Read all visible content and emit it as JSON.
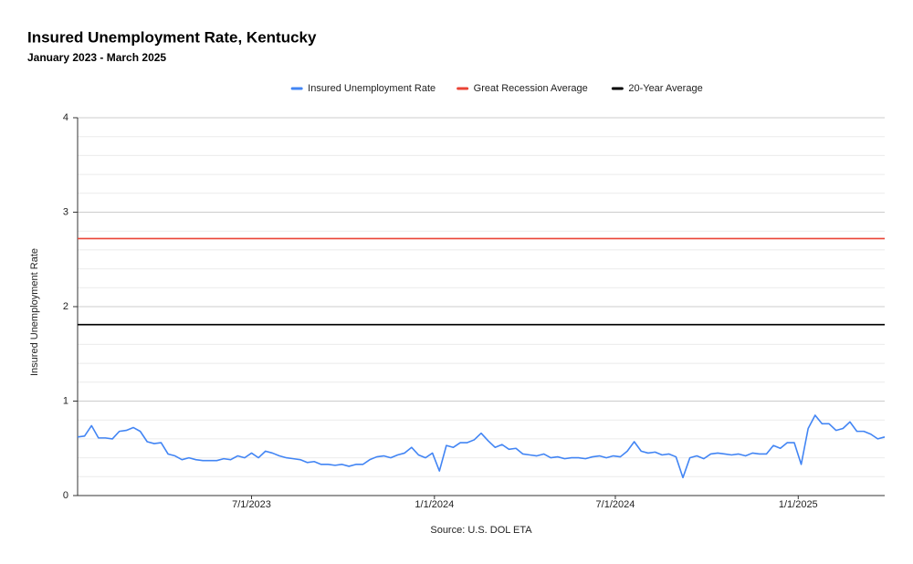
{
  "chart_data": {
    "type": "line",
    "title": "Insured Unemployment Rate, Kentucky",
    "subtitle": "January 2023 - March 2025",
    "y_label": "Insured Unemployment Rate",
    "source": "Source: U.S. DOL ETA",
    "x": [
      "1/7/2023",
      "1/14/2023",
      "1/21/2023",
      "1/28/2023",
      "2/4/2023",
      "2/11/2023",
      "2/18/2023",
      "2/25/2023",
      "3/4/2023",
      "3/11/2023",
      "3/18/2023",
      "3/25/2023",
      "4/1/2023",
      "4/8/2023",
      "4/15/2023",
      "4/22/2023",
      "4/29/2023",
      "5/6/2023",
      "5/13/2023",
      "5/20/2023",
      "5/27/2023",
      "6/3/2023",
      "6/10/2023",
      "6/17/2023",
      "6/24/2023",
      "7/1/2023",
      "7/8/2023",
      "7/15/2023",
      "7/22/2023",
      "7/29/2023",
      "8/5/2023",
      "8/12/2023",
      "8/19/2023",
      "8/26/2023",
      "9/2/2023",
      "9/9/2023",
      "9/16/2023",
      "9/23/2023",
      "9/30/2023",
      "10/7/2023",
      "10/14/2023",
      "10/21/2023",
      "10/28/2023",
      "11/4/2023",
      "11/11/2023",
      "11/18/2023",
      "11/25/2023",
      "12/2/2023",
      "12/9/2023",
      "12/16/2023",
      "12/23/2023",
      "12/30/2023",
      "1/6/2024",
      "1/13/2024",
      "1/20/2024",
      "1/27/2024",
      "2/3/2024",
      "2/10/2024",
      "2/17/2024",
      "2/24/2024",
      "3/2/2024",
      "3/9/2024",
      "3/16/2024",
      "3/23/2024",
      "3/30/2024",
      "4/6/2024",
      "4/13/2024",
      "4/20/2024",
      "4/27/2024",
      "5/4/2024",
      "5/11/2024",
      "5/18/2024",
      "5/25/2024",
      "6/1/2024",
      "6/8/2024",
      "6/15/2024",
      "6/22/2024",
      "6/29/2024",
      "7/6/2024",
      "7/13/2024",
      "7/20/2024",
      "7/27/2024",
      "8/3/2024",
      "8/10/2024",
      "8/17/2024",
      "8/24/2024",
      "8/31/2024",
      "9/7/2024",
      "9/14/2024",
      "9/21/2024",
      "9/28/2024",
      "10/5/2024",
      "10/12/2024",
      "10/19/2024",
      "10/26/2024",
      "11/2/2024",
      "11/9/2024",
      "11/16/2024",
      "11/23/2024",
      "11/30/2024",
      "12/7/2024",
      "12/14/2024",
      "12/21/2024",
      "12/28/2024",
      "1/4/2025",
      "1/11/2025",
      "1/18/2025",
      "1/25/2025",
      "2/1/2025",
      "2/8/2025",
      "2/15/2025",
      "2/22/2025",
      "3/1/2025",
      "3/8/2025",
      "3/15/2025",
      "3/22/2025",
      "3/29/2025"
    ],
    "series": [
      {
        "name": "Insured Unemployment Rate",
        "color": "#4285f4",
        "values": [
          0.62,
          0.63,
          0.74,
          0.61,
          0.61,
          0.6,
          0.68,
          0.69,
          0.72,
          0.68,
          0.57,
          0.55,
          0.56,
          0.44,
          0.42,
          0.38,
          0.4,
          0.38,
          0.37,
          0.37,
          0.37,
          0.39,
          0.38,
          0.42,
          0.4,
          0.45,
          0.4,
          0.47,
          0.45,
          0.42,
          0.4,
          0.39,
          0.38,
          0.35,
          0.36,
          0.33,
          0.33,
          0.32,
          0.33,
          0.31,
          0.33,
          0.33,
          0.38,
          0.41,
          0.42,
          0.4,
          0.43,
          0.45,
          0.51,
          0.43,
          0.4,
          0.45,
          0.26,
          0.53,
          0.51,
          0.56,
          0.56,
          0.59,
          0.66,
          0.58,
          0.51,
          0.54,
          0.49,
          0.5,
          0.44,
          0.43,
          0.42,
          0.44,
          0.4,
          0.41,
          0.39,
          0.4,
          0.4,
          0.39,
          0.41,
          0.42,
          0.4,
          0.42,
          0.41,
          0.47,
          0.57,
          0.47,
          0.45,
          0.46,
          0.43,
          0.44,
          0.41,
          0.19,
          0.4,
          0.42,
          0.39,
          0.44,
          0.45,
          0.44,
          0.43,
          0.44,
          0.42,
          0.45,
          0.44,
          0.44,
          0.53,
          0.5,
          0.56,
          0.56,
          0.33,
          0.71,
          0.85,
          0.76,
          0.76,
          0.69,
          0.71,
          0.78,
          0.68,
          0.68,
          0.65,
          0.6,
          0.62
        ]
      }
    ],
    "reference_lines": [
      {
        "name": "Great Recession Average",
        "color": "#ea4335",
        "value": 2.72
      },
      {
        "name": "20-Year Average",
        "color": "#000000",
        "value": 1.81
      }
    ],
    "xlim": [
      "1/7/2023",
      "3/29/2025"
    ],
    "xticks": [
      "7/1/2023",
      "1/1/2024",
      "7/1/2024",
      "1/1/2025"
    ],
    "ylim": [
      0,
      4
    ],
    "yticks": [
      0,
      1,
      2,
      3,
      4
    ],
    "grid": true,
    "minor_grid": 5,
    "legend": "top"
  }
}
